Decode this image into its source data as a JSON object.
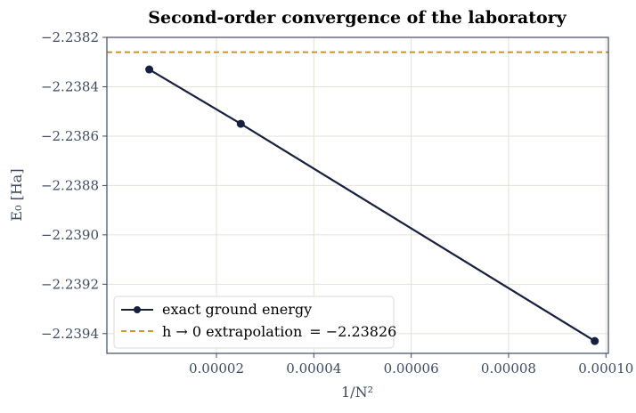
{
  "chart_data": {
    "type": "line",
    "title": "Second-order convergence of the laboratory",
    "xlabel": "1/N²",
    "ylabel": "E₀ [Ha]",
    "xlim": [
      -2.5e-06,
      0.0001005
    ],
    "ylim": [
      -2.23948,
      -2.2382
    ],
    "xticks": [
      "0.00002",
      "0.00004",
      "0.00006",
      "0.00008",
      "0.00010"
    ],
    "xtick_values": [
      2e-05,
      4e-05,
      6e-05,
      8e-05,
      0.0001
    ],
    "yticks": [
      "−2.2382",
      "−2.2384",
      "−2.2386",
      "−2.2388",
      "−2.2390",
      "−2.2392",
      "−2.2394"
    ],
    "ytick_values": [
      -2.2382,
      -2.2384,
      -2.2386,
      -2.2388,
      -2.239,
      -2.2392,
      -2.2394
    ],
    "grid": true,
    "legend_position": "lower-left",
    "series": [
      {
        "name": "exact ground energy",
        "color": "#17213f",
        "marker": "circle",
        "x": [
          6.2e-06,
          2.5e-05,
          9.77e-05
        ],
        "y": [
          -2.23833,
          -2.23855,
          -2.23943
        ]
      }
    ],
    "reference_line": {
      "name": "h → 0 extrapolation",
      "value_label": "= −2.23826",
      "y": -2.23826,
      "color": "#c8861a",
      "style": "dashed"
    }
  }
}
